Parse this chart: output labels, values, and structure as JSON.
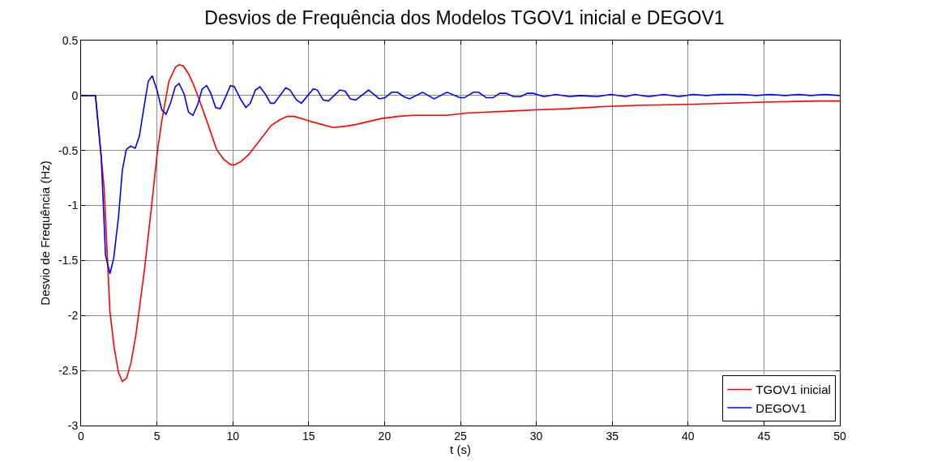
{
  "chart_data": {
    "type": "line",
    "title": "Desvios de Frequência dos Modelos TGOV1 inicial e DEGOV1",
    "xlabel": "t (s)",
    "ylabel": "Desvio de Frequência (Hz)",
    "xlim": [
      0,
      50
    ],
    "xticks": [
      0,
      5,
      10,
      15,
      20,
      25,
      30,
      35,
      40,
      45,
      50
    ],
    "ylim": [
      -3,
      0.5
    ],
    "yticks": [
      -3,
      -2.5,
      -2,
      -1.5,
      -1,
      -0.5,
      0,
      0.5
    ],
    "grid": true,
    "legend": "bottom right",
    "marker": "none",
    "line_style": "solid",
    "series": [
      {
        "name": "TGOV1 inicial",
        "color": "#ff0000",
        "x": [
          0,
          0.95,
          1.52,
          1.9,
          2.18,
          2.47,
          2.72,
          3.0,
          3.29,
          3.61,
          4.18,
          4.65,
          5.03,
          5.32,
          5.79,
          6.23,
          6.46,
          6.74,
          7.07,
          7.41,
          7.79,
          8.36,
          8.93,
          9.4,
          9.88,
          10.1,
          10.54,
          11.02,
          11.6,
          12.54,
          13.1,
          13.58,
          14.06,
          15.0,
          15.77,
          16.6,
          17.4,
          18.23,
          19.75,
          20.9,
          21.8,
          24.1,
          25.4,
          26.8,
          28.5,
          30.0,
          32.1,
          34.4,
          36.65,
          40.1,
          45.0,
          48.5,
          50
        ],
        "values": [
          0,
          0,
          -0.84,
          -1.96,
          -2.29,
          -2.52,
          -2.6,
          -2.57,
          -2.43,
          -2.18,
          -1.58,
          -1.0,
          -0.51,
          -0.23,
          0.13,
          0.26,
          0.28,
          0.27,
          0.2,
          0.1,
          -0.04,
          -0.26,
          -0.49,
          -0.58,
          -0.63,
          -0.63,
          -0.6,
          -0.54,
          -0.44,
          -0.27,
          -0.22,
          -0.19,
          -0.19,
          -0.23,
          -0.26,
          -0.29,
          -0.28,
          -0.26,
          -0.21,
          -0.19,
          -0.18,
          -0.18,
          -0.16,
          -0.15,
          -0.14,
          -0.13,
          -0.12,
          -0.1,
          -0.09,
          -0.08,
          -0.06,
          -0.05,
          -0.05
        ]
      },
      {
        "name": "DEGOV1",
        "color": "#0000ff",
        "x": [
          0,
          0.95,
          1.33,
          1.61,
          1.9,
          2.15,
          2.47,
          2.72,
          2.98,
          3.27,
          3.57,
          3.84,
          4.14,
          4.43,
          4.69,
          5.0,
          5.32,
          5.6,
          5.89,
          6.21,
          6.46,
          6.8,
          7.08,
          7.37,
          7.69,
          7.98,
          8.28,
          8.55,
          8.87,
          9.17,
          9.5,
          9.84,
          10.1,
          10.54,
          10.86,
          11.15,
          11.49,
          11.78,
          12.16,
          12.48,
          12.73,
          13.49,
          13.77,
          14.19,
          14.52,
          15.3,
          15.57,
          15.95,
          16.3,
          17.05,
          17.4,
          17.75,
          18.1,
          18.95,
          19.65,
          20.03,
          20.47,
          20.85,
          21.27,
          21.65,
          22.5,
          23.26,
          24.12,
          24.97,
          25.26,
          25.86,
          26.2,
          26.7,
          27.15,
          27.6,
          28.0,
          28.5,
          28.96,
          29.4,
          29.8,
          30.5,
          31.3,
          32.2,
          32.9,
          34.0,
          34.9,
          35.9,
          36.5,
          37.4,
          38.4,
          39.4,
          40.3,
          41.2,
          42.2,
          43.5,
          44.5,
          45.4,
          46.4,
          47.3,
          48.1,
          49.0,
          50
        ],
        "values": [
          0,
          0,
          -0.56,
          -1.45,
          -1.62,
          -1.48,
          -1.1,
          -0.68,
          -0.49,
          -0.46,
          -0.48,
          -0.37,
          -0.11,
          0.13,
          0.18,
          0.05,
          -0.13,
          -0.17,
          -0.07,
          0.08,
          0.11,
          0.01,
          -0.15,
          -0.18,
          -0.08,
          0.06,
          0.09,
          0.02,
          -0.11,
          -0.12,
          -0.02,
          0.09,
          0.08,
          -0.04,
          -0.11,
          -0.07,
          0.05,
          0.08,
          0.01,
          -0.07,
          -0.07,
          0.07,
          0.05,
          -0.04,
          -0.07,
          0.06,
          0.05,
          -0.04,
          -0.05,
          0.05,
          0.04,
          -0.03,
          -0.04,
          0.05,
          -0.03,
          -0.02,
          0.03,
          0.03,
          -0.01,
          -0.03,
          0.03,
          -0.03,
          0.03,
          -0.02,
          -0.02,
          0.03,
          0.03,
          -0.02,
          -0.02,
          0.02,
          0.02,
          -0.01,
          -0.01,
          0.02,
          0.02,
          -0.01,
          0.01,
          -0.01,
          0,
          -0.01,
          0.01,
          -0.01,
          0.01,
          -0.01,
          0.01,
          -0.01,
          0.01,
          0,
          0.01,
          0.01,
          0,
          0.01,
          0,
          0.01,
          0,
          0.01,
          0
        ]
      }
    ]
  }
}
